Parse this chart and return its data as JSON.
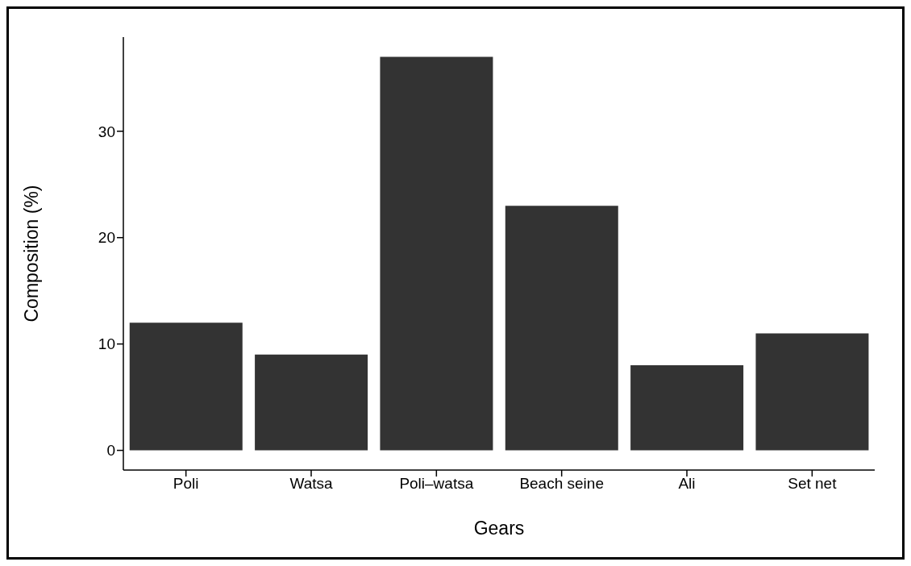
{
  "chart_data": {
    "type": "bar",
    "xlabel": "Gears",
    "ylabel": "Composition (%)",
    "categories": [
      "Poli",
      "Watsa",
      "Poli–watsa",
      "Beach seine",
      "Ali",
      "Set net"
    ],
    "values": [
      12,
      9,
      37,
      23,
      8,
      11
    ],
    "color": "#333333",
    "ylim": [
      -1.85,
      38.85
    ],
    "yticks": [
      0,
      10,
      20,
      30
    ],
    "grid": false,
    "legend": false
  }
}
